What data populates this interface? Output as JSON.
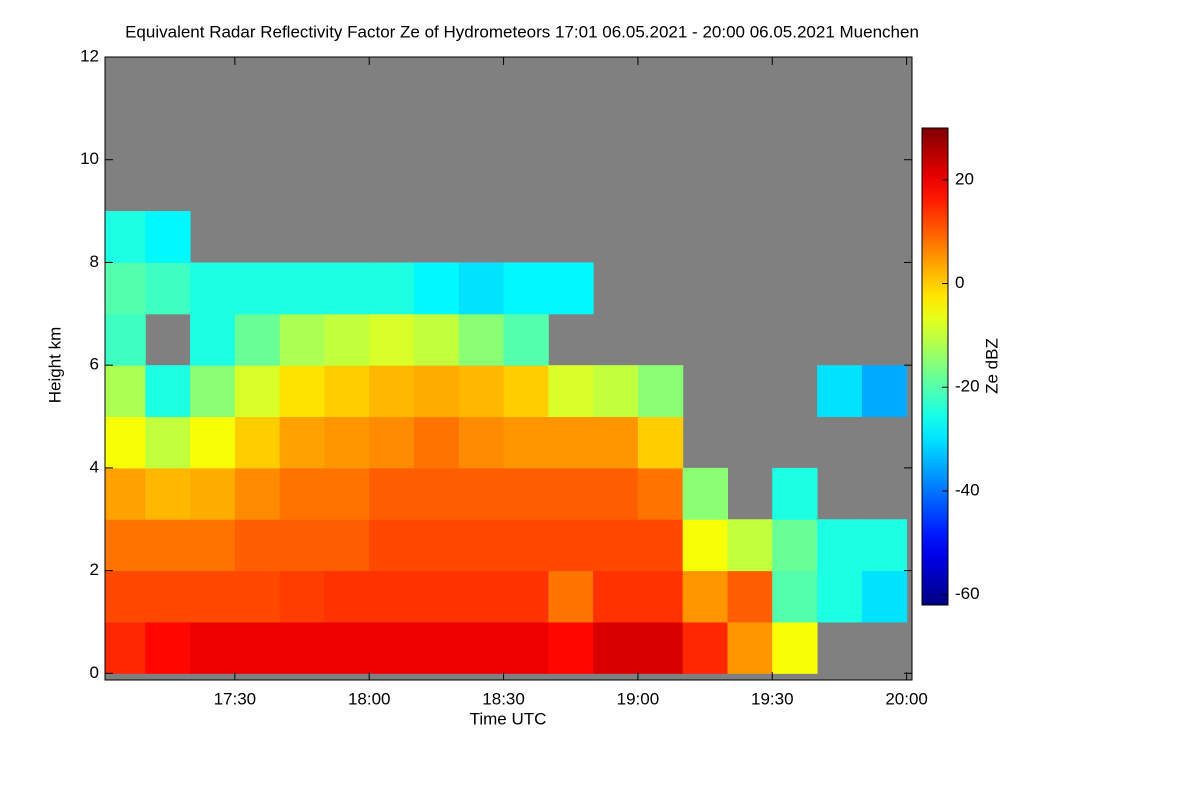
{
  "chart_data": {
    "type": "heatmap",
    "title": "Equivalent Radar Reflectivity Factor Ze of Hydrometeors   17:01 06.05.2021 - 20:00 06.05.2021 Muenchen",
    "xlabel": "Time UTC",
    "ylabel": "Height km",
    "colorbar_label": "Ze dBZ",
    "colormap": "jet",
    "null_color": "#808080",
    "x": [
      17.0833,
      17.25,
      17.4167,
      17.5833,
      17.75,
      17.9167,
      18.0833,
      18.25,
      18.4167,
      18.5833,
      18.75,
      18.9167,
      19.0833,
      19.25,
      19.4167,
      19.5833,
      19.75,
      19.9167
    ],
    "y": [
      0.5,
      1.5,
      2.5,
      3.5,
      4.5,
      5.5,
      6.5,
      7.5,
      8.5,
      9.5,
      10.5,
      11.5
    ],
    "z": [
      [
        15,
        18,
        20,
        20,
        20,
        20,
        20,
        20,
        20,
        20,
        18,
        22,
        22,
        15,
        5,
        -5,
        null,
        null
      ],
      [
        12,
        12,
        12,
        12,
        13,
        14,
        14,
        14,
        14,
        14,
        8,
        14,
        14,
        5,
        10,
        -20,
        -25,
        -30
      ],
      [
        8,
        8,
        8,
        10,
        10,
        10,
        12,
        12,
        12,
        12,
        12,
        12,
        12,
        -5,
        -10,
        -18,
        -25,
        -25
      ],
      [
        4,
        2,
        3,
        6,
        8,
        8,
        10,
        10,
        10,
        10,
        10,
        10,
        8,
        -15,
        null,
        -25,
        null,
        null
      ],
      [
        -5,
        -10,
        -5,
        0,
        4,
        5,
        6,
        8,
        6,
        5,
        5,
        5,
        0,
        null,
        null,
        null,
        null,
        null
      ],
      [
        -12,
        -25,
        -15,
        -8,
        -2,
        0,
        2,
        3,
        2,
        0,
        -8,
        -10,
        -15,
        null,
        null,
        null,
        -30,
        -35
      ],
      [
        -22,
        null,
        -25,
        -18,
        -12,
        -10,
        -8,
        -10,
        -15,
        -20,
        null,
        null,
        null,
        null,
        null,
        null,
        null,
        null
      ],
      [
        -20,
        -22,
        -25,
        -25,
        -25,
        -25,
        -25,
        -28,
        -30,
        -28,
        -28,
        null,
        null,
        null,
        null,
        null,
        null,
        null
      ],
      [
        -25,
        -28,
        null,
        null,
        null,
        null,
        null,
        null,
        null,
        null,
        null,
        null,
        null,
        null,
        null,
        null,
        null,
        null
      ],
      [
        null,
        null,
        null,
        null,
        null,
        null,
        null,
        null,
        null,
        null,
        null,
        null,
        null,
        null,
        null,
        null,
        null,
        null
      ],
      [
        null,
        null,
        null,
        null,
        null,
        null,
        null,
        null,
        null,
        null,
        null,
        null,
        null,
        null,
        null,
        null,
        null,
        null
      ],
      [
        null,
        null,
        null,
        null,
        null,
        null,
        null,
        null,
        null,
        null,
        null,
        null,
        null,
        null,
        null,
        null,
        null,
        null
      ]
    ],
    "xlim": [
      17.0167,
      20.02
    ],
    "ylim": [
      -0.13,
      12
    ],
    "xticks": [
      {
        "value": 17.5,
        "label": "17:30"
      },
      {
        "value": 18,
        "label": "18:00"
      },
      {
        "value": 18.5,
        "label": "18:30"
      },
      {
        "value": 19,
        "label": "19:00"
      },
      {
        "value": 19.5,
        "label": "19:30"
      },
      {
        "value": 20,
        "label": "20:00"
      }
    ],
    "yticks": [
      0,
      2,
      4,
      6,
      8,
      10,
      12
    ],
    "zlim": [
      -62,
      30
    ],
    "zticks": [
      -60,
      -40,
      -20,
      0,
      20
    ]
  }
}
